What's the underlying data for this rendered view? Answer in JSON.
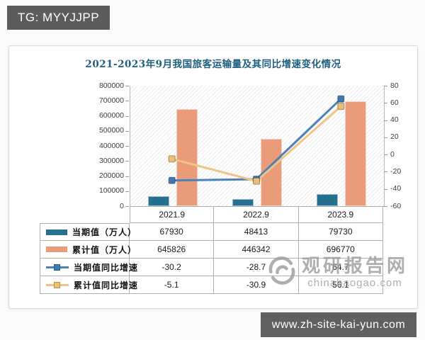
{
  "badge": {
    "label": "TG: MYYJJPP"
  },
  "footer": {
    "url": "www.zh-site-kai-yun.com"
  },
  "watermark": {
    "logo_icon": "swirl-globe-icon",
    "name": "观研报告网",
    "domain": "chinabaogao.com",
    "color": "#9a9a9a"
  },
  "chart_data": {
    "type": "bar",
    "subtype": "combo-bar-line-with-data-table",
    "title": "2021-2023年9月我国旅客运输量及其同比增速变化情况",
    "title_color": "#1e5f7e",
    "categories": [
      "2021.9",
      "2022.9",
      "2023.9"
    ],
    "series": [
      {
        "name": "当期值（万人）",
        "type": "bar",
        "axis": "left",
        "color": "#26708f",
        "values": [
          67930,
          48413,
          79730
        ]
      },
      {
        "name": "累计值（万人）",
        "type": "bar",
        "axis": "left",
        "color": "#ea9b79",
        "values": [
          645826,
          446342,
          696770
        ]
      },
      {
        "name": "当期值同比增速",
        "type": "line",
        "axis": "right",
        "color": "#4a82b8",
        "marker_color": "#3f78b2",
        "values": [
          -30.2,
          -28.7,
          64.7
        ]
      },
      {
        "name": "累计值同比增速",
        "type": "line",
        "axis": "right",
        "color": "#f0c489",
        "marker_color": "#efbe74",
        "values": [
          -5.1,
          -30.9,
          56.1
        ]
      }
    ],
    "left_axis": {
      "min": 0,
      "max": 800000,
      "step": 100000,
      "ticks": [
        "800000",
        "700000",
        "600000",
        "500000",
        "400000",
        "300000",
        "200000",
        "100000",
        "0"
      ]
    },
    "right_axis": {
      "min": -60,
      "max": 80,
      "step": 20,
      "ticks": [
        "80",
        "60",
        "40",
        "20",
        "0",
        "-20",
        "-40",
        "-60"
      ]
    },
    "grid": false,
    "legend_position": "data-table-left-column",
    "plot_background": "diagonal-hatch"
  }
}
